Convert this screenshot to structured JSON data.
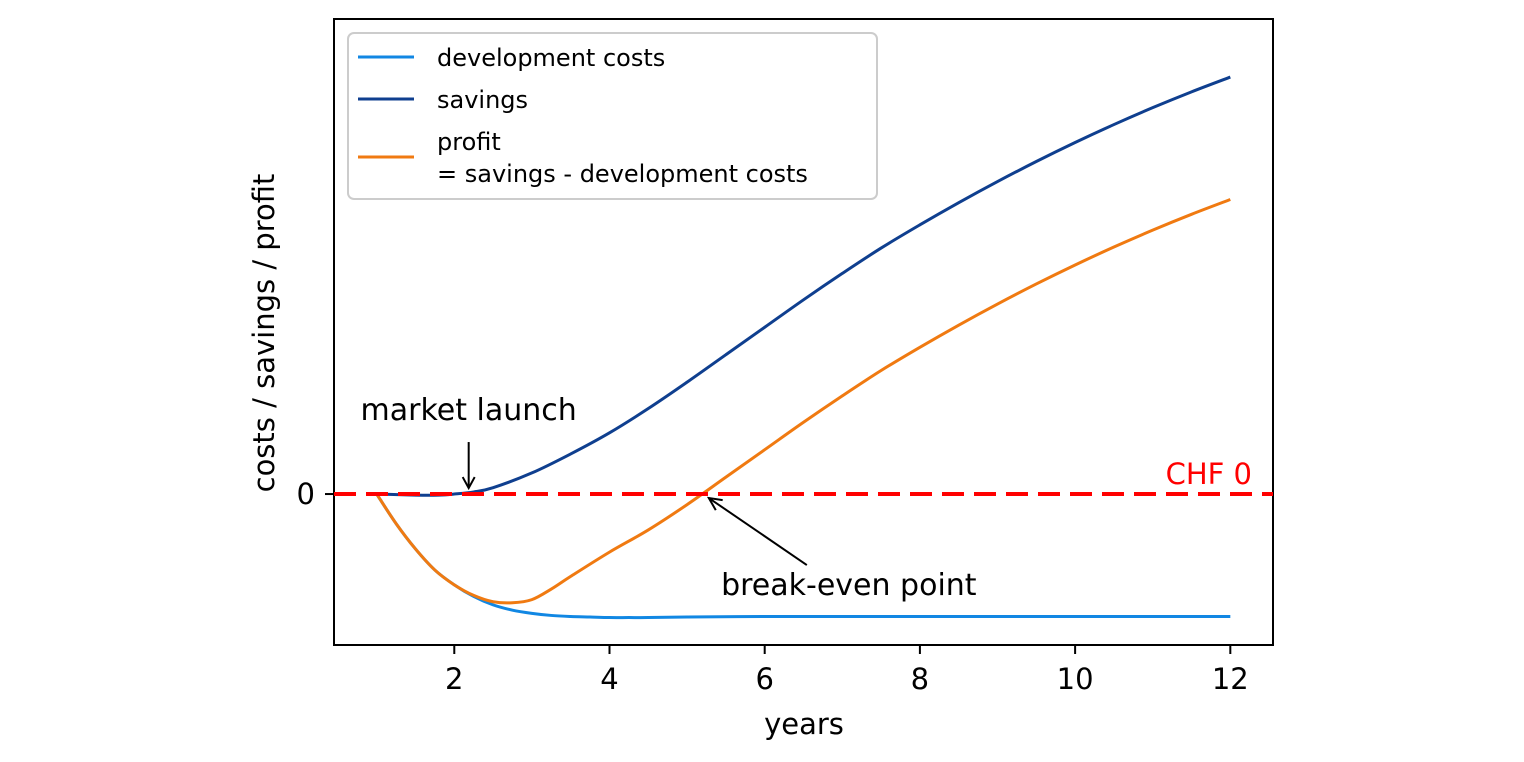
{
  "chart_data": {
    "type": "line",
    "xlabel": "years",
    "ylabel": "costs / savings / profit",
    "xlim": [
      0.45,
      12.55
    ],
    "ylim": [
      -1.43,
      4.5
    ],
    "x_ticks": [
      2,
      4,
      6,
      8,
      10,
      12
    ],
    "x_tick_labels": [
      "2",
      "4",
      "6",
      "8",
      "10",
      "12"
    ],
    "y_ticks": [
      0
    ],
    "y_tick_labels": [
      "0"
    ],
    "grid": false,
    "legend_position": "upper-left",
    "colors": {
      "development_costs": "#1187E3",
      "savings": "#0F3F8F",
      "profit": "#F07A11",
      "zero_line": "#FF0000"
    },
    "series": [
      {
        "name": "development costs",
        "color_key": "development_costs",
        "x": [
          1.0,
          1.25,
          1.5,
          1.75,
          2.0,
          2.25,
          2.5,
          2.75,
          3.0,
          3.25,
          3.5,
          3.75,
          4.0,
          4.25,
          4.5,
          5.0,
          6.0,
          7.0,
          8.0,
          9.0,
          10.0,
          11.0,
          12.0
        ],
        "y": [
          0.0,
          -0.28,
          -0.52,
          -0.72,
          -0.86,
          -0.97,
          -1.05,
          -1.1,
          -1.13,
          -1.15,
          -1.16,
          -1.165,
          -1.17,
          -1.17,
          -1.17,
          -1.165,
          -1.16,
          -1.16,
          -1.16,
          -1.16,
          -1.16,
          -1.16,
          -1.16
        ]
      },
      {
        "name": "savings",
        "color_key": "savings",
        "x": [
          1.0,
          1.5,
          1.8,
          2.0,
          2.25,
          2.5,
          3.0,
          3.5,
          4.0,
          4.5,
          5.0,
          5.5,
          6.0,
          6.5,
          7.0,
          7.5,
          8.0,
          8.5,
          9.0,
          9.5,
          10.0,
          10.5,
          11.0,
          11.5,
          12.0
        ],
        "y": [
          0.0,
          -0.01,
          -0.01,
          0.0,
          0.02,
          0.06,
          0.2,
          0.38,
          0.58,
          0.81,
          1.06,
          1.32,
          1.58,
          1.84,
          2.09,
          2.33,
          2.55,
          2.76,
          2.96,
          3.15,
          3.33,
          3.5,
          3.66,
          3.81,
          3.95
        ]
      },
      {
        "name": "profit\n= savings - development costs",
        "color_key": "profit",
        "x": [
          1.0,
          1.25,
          1.5,
          1.75,
          2.0,
          2.25,
          2.5,
          2.75,
          3.0,
          3.25,
          3.5,
          4.0,
          4.5,
          5.0,
          5.5,
          6.0,
          6.5,
          7.0,
          7.5,
          8.0,
          8.5,
          9.0,
          9.5,
          10.0,
          10.5,
          11.0,
          11.5,
          12.0
        ],
        "y": [
          0.0,
          -0.28,
          -0.52,
          -0.72,
          -0.86,
          -0.96,
          -1.02,
          -1.03,
          -1.0,
          -0.9,
          -0.78,
          -0.55,
          -0.34,
          -0.1,
          0.16,
          0.42,
          0.68,
          0.93,
          1.17,
          1.39,
          1.6,
          1.8,
          1.99,
          2.17,
          2.34,
          2.5,
          2.65,
          2.79
        ]
      }
    ],
    "reference_line": {
      "y": 0,
      "style": "dashed",
      "label": "CHF 0",
      "color_key": "zero_line"
    },
    "annotations": [
      {
        "text": "market launch",
        "point_x": 2.25,
        "point_y": 0.0
      },
      {
        "text": "break-even point",
        "point_x": 5.28,
        "point_y": 0.0
      }
    ]
  }
}
